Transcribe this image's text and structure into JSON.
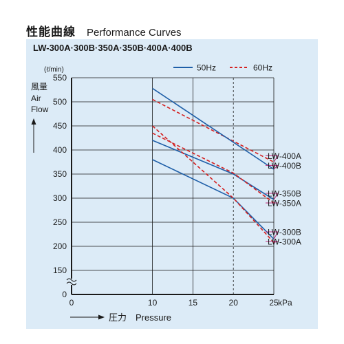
{
  "header": {
    "title_jp": "性能曲線",
    "title_en": "Performance Curves"
  },
  "models_label": "LW-300A·300B·350A·350B·400A·400B",
  "colors": {
    "hz50": "#1f5fa8",
    "hz60": "#d42020",
    "panel": "#dcebf7",
    "leader": "#c0287a"
  },
  "chart_data": {
    "type": "line",
    "xlabel_arrow": "→",
    "xlabel_jp": "圧力",
    "xlabel": "Pressure",
    "xunit": "kPa",
    "yunit": "(ℓ/min)",
    "ylabel_jp": "風量",
    "ylabel_line1": "Air",
    "ylabel_line2": "Flow",
    "yaxis_break": true,
    "ylim": [
      150,
      550
    ],
    "y_break_bottom": 0,
    "yticks": [
      0,
      150,
      200,
      250,
      300,
      350,
      400,
      450,
      500,
      550
    ],
    "xlim": [
      0,
      25
    ],
    "xticks": [
      0,
      10,
      15,
      20,
      25
    ],
    "grid": true,
    "reference_line_x": 20,
    "legend": {
      "placement": "top-right",
      "items": [
        {
          "label": "50Hz",
          "style": "solid"
        },
        {
          "label": "60Hz",
          "style": "dashed"
        }
      ]
    },
    "series": [
      {
        "name": "LW-400A",
        "hz": "60Hz",
        "x": [
          10,
          25
        ],
        "y": [
          505,
          375
        ]
      },
      {
        "name": "LW-400B",
        "hz": "50Hz",
        "x": [
          10,
          25
        ],
        "y": [
          528,
          360
        ]
      },
      {
        "name": "LW-350B",
        "hz": "50Hz",
        "x": [
          10,
          20,
          25
        ],
        "y": [
          420,
          350,
          297
        ]
      },
      {
        "name": "LW-350A",
        "hz": "60Hz",
        "x": [
          10,
          20,
          25
        ],
        "y": [
          435,
          352,
          290
        ]
      },
      {
        "name": "LW-300B",
        "hz": "50Hz",
        "x": [
          10,
          20,
          25
        ],
        "y": [
          380,
          300,
          215
        ]
      },
      {
        "name": "LW-300A",
        "hz": "60Hz",
        "x": [
          10,
          20,
          25
        ],
        "y": [
          450,
          300,
          208
        ]
      }
    ],
    "labels": [
      {
        "text": "LW-400A",
        "series": "LW-400A",
        "label_y": 388
      },
      {
        "text": "LW-400B",
        "series": "LW-400B",
        "label_y": 368
      },
      {
        "text": "LW-350B",
        "series": "LW-350B",
        "label_y": 310
      },
      {
        "text": "LW-350A",
        "series": "LW-350A",
        "label_y": 290
      },
      {
        "text": "LW-300B",
        "series": "LW-300B",
        "label_y": 230
      },
      {
        "text": "LW-300A",
        "series": "LW-300A",
        "label_y": 210
      }
    ]
  }
}
